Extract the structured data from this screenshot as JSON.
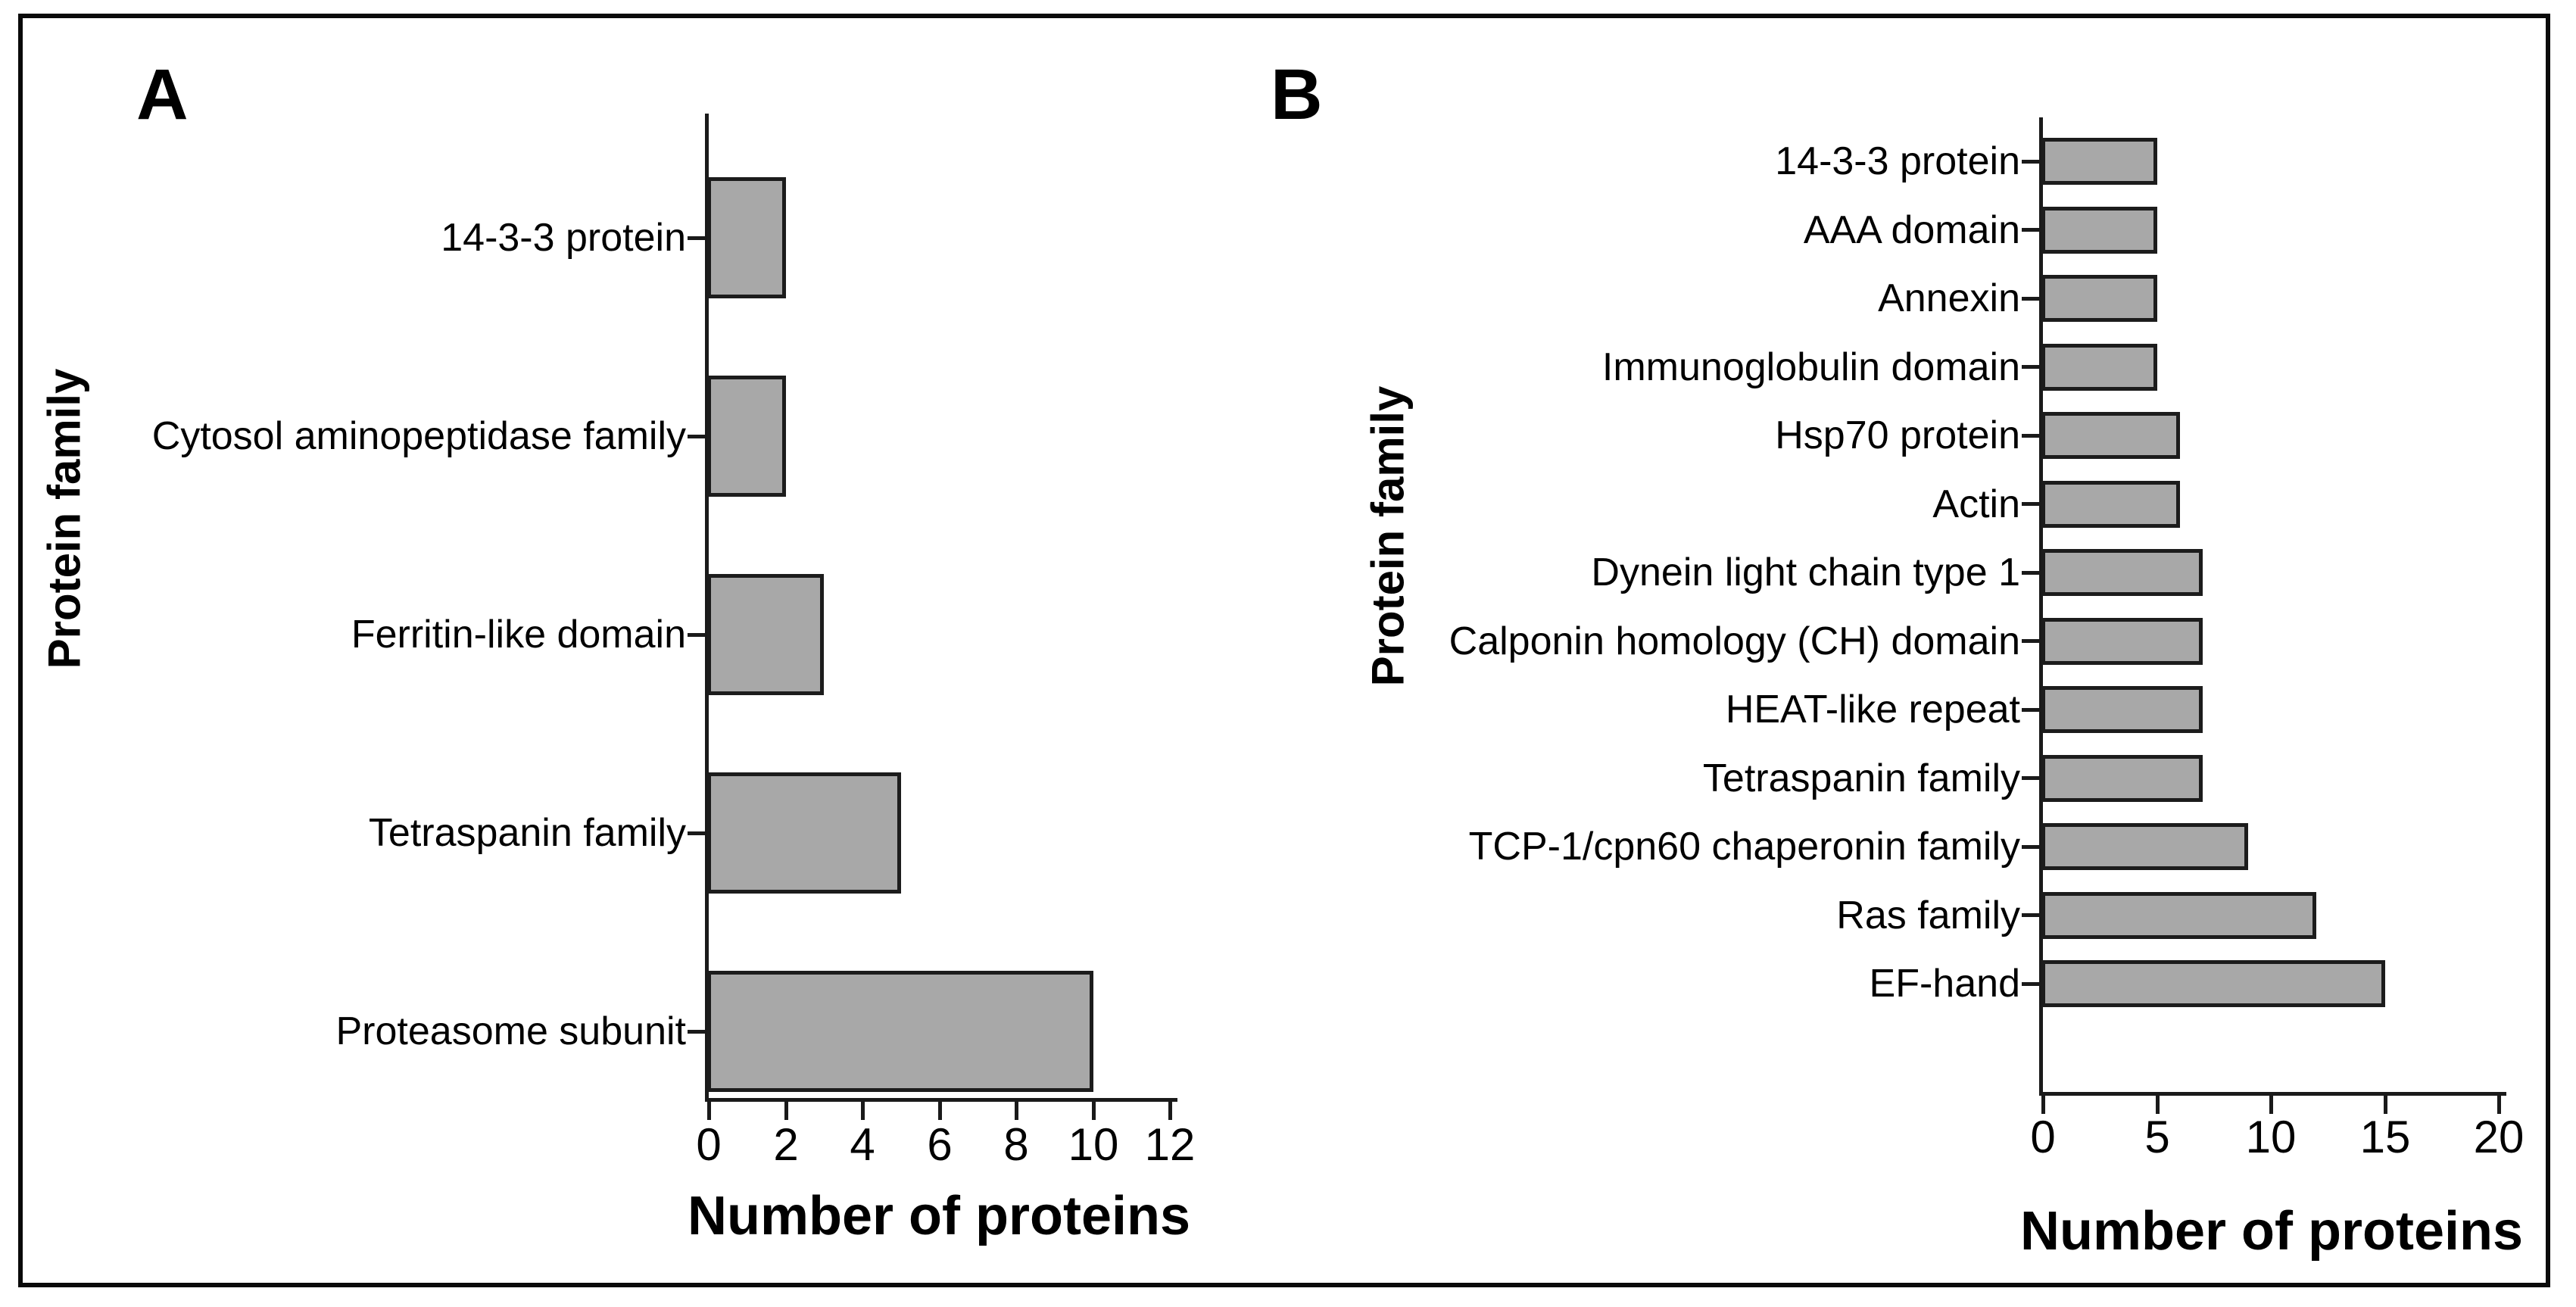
{
  "colors": {
    "background": "#ffffff",
    "figure_border": "#0a0a0a",
    "bar_fill": "#a8a8a8",
    "bar_stroke": "#1c1c1c",
    "axis": "#1a1a1a",
    "text": "#000000"
  },
  "chart_data": [
    {
      "panel": "A",
      "type": "bar",
      "orientation": "horizontal",
      "title": "",
      "xlabel": "Number of proteins",
      "ylabel": "Protein family",
      "categories": [
        "14-3-3 protein",
        "Cytosol aminopeptidase family",
        "Ferritin-like domain",
        "Tetraspanin family",
        "Proteasome subunit"
      ],
      "values": [
        2,
        2,
        3,
        5,
        10
      ],
      "xlim": [
        0,
        12
      ],
      "xticks": [
        0,
        2,
        4,
        6,
        8,
        10,
        12
      ],
      "grid": false,
      "legend": "none"
    },
    {
      "panel": "B",
      "type": "bar",
      "orientation": "horizontal",
      "title": "",
      "xlabel": "Number of proteins",
      "ylabel": "Protein family",
      "categories": [
        "14-3-3 protein",
        "AAA domain",
        "Annexin",
        "Immunoglobulin domain",
        "Hsp70 protein",
        "Actin",
        "Dynein light chain type 1",
        "Calponin homology (CH) domain",
        "HEAT-like repeat",
        "Tetraspanin family",
        "TCP-1/cpn60 chaperonin family",
        "Ras family",
        "EF-hand"
      ],
      "values": [
        5,
        5,
        5,
        5,
        6,
        6,
        7,
        7,
        7,
        7,
        9,
        12,
        15
      ],
      "xlim": [
        0,
        20
      ],
      "xticks": [
        0,
        5,
        10,
        15,
        20
      ],
      "grid": false,
      "legend": "none"
    }
  ]
}
